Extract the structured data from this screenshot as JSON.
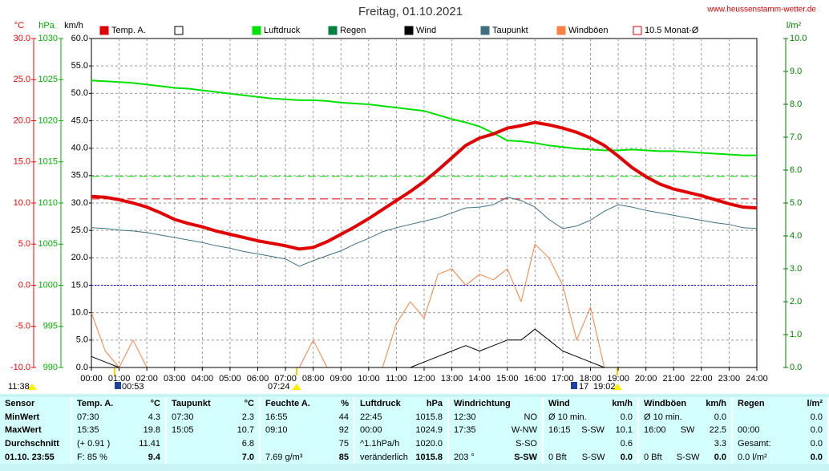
{
  "chart_data": {
    "type": "line",
    "title": "Freitag, 01.10.2021",
    "source": "www.heussenstamm-wetter.de",
    "xlim": [
      0,
      24
    ],
    "xticks": [
      {
        "value": 0,
        "label": "00:00"
      },
      {
        "value": 1,
        "label": "01:00"
      },
      {
        "value": 2,
        "label": "02:00"
      },
      {
        "value": 3,
        "label": "03:00"
      },
      {
        "value": 4,
        "label": "04:00"
      },
      {
        "value": 5,
        "label": "05:00"
      },
      {
        "value": 6,
        "label": "06:00"
      },
      {
        "value": 7,
        "label": "07:00"
      },
      {
        "value": 8,
        "label": "08:00"
      },
      {
        "value": 9,
        "label": "09:00"
      },
      {
        "value": 10,
        "label": "10:00"
      },
      {
        "value": 11,
        "label": "11:00"
      },
      {
        "value": 12,
        "label": "12:00"
      },
      {
        "value": 13,
        "label": "13:00"
      },
      {
        "value": 14,
        "label": "14:00"
      },
      {
        "value": 15,
        "label": "15:00"
      },
      {
        "value": 16,
        "label": "16:00"
      },
      {
        "value": 17,
        "label": "17:00"
      },
      {
        "value": 18,
        "label": "18:00"
      },
      {
        "value": 19,
        "label": "19:00"
      },
      {
        "value": 20,
        "label": "20:00"
      },
      {
        "value": 21,
        "label": "21:00"
      },
      {
        "value": 22,
        "label": "22:00"
      },
      {
        "value": 23,
        "label": "23:00"
      },
      {
        "value": 24,
        "label": "24:00"
      }
    ],
    "grid": true,
    "y_axes": [
      {
        "label": "°C",
        "color": "#ff0000",
        "lim": [
          -10,
          30
        ],
        "ticks": [
          {
            "value": 30,
            "label": "30.0"
          },
          {
            "value": 25,
            "label": "25.0"
          },
          {
            "value": 20,
            "label": "20.0"
          },
          {
            "value": 15,
            "label": "15.0"
          },
          {
            "value": 10,
            "label": "10.0"
          },
          {
            "value": 5,
            "label": "5.0"
          },
          {
            "value": 0,
            "label": "0.0"
          },
          {
            "value": -5,
            "label": "-5.0"
          },
          {
            "value": -10,
            "label": "-10.0"
          }
        ]
      },
      {
        "label": "hPa",
        "color": "#00b000",
        "lim": [
          990,
          1030
        ],
        "ticks": [
          1030,
          1025,
          1020,
          1015,
          1010,
          1005,
          1000,
          995,
          990
        ]
      },
      {
        "label": "km/h",
        "color": "#000000",
        "lim": [
          0,
          60
        ],
        "ticks": [
          {
            "value": 60,
            "label": "60.0"
          },
          {
            "value": 55,
            "label": "55.0"
          },
          {
            "value": 50,
            "label": "50.0"
          },
          {
            "value": 45,
            "label": "45.0"
          },
          {
            "value": 40,
            "label": "40.0"
          },
          {
            "value": 35,
            "label": "35.0"
          },
          {
            "value": 30,
            "label": "30.0"
          },
          {
            "value": 25,
            "label": "25.0"
          },
          {
            "value": 20,
            "label": "20.0"
          },
          {
            "value": 15,
            "label": "15.0"
          },
          {
            "value": 10,
            "label": "10.0"
          },
          {
            "value": 5,
            "label": "5.0"
          },
          {
            "value": 0,
            "label": "0.0"
          }
        ]
      },
      {
        "label": "l/m²",
        "color": "#008000",
        "lim": [
          0,
          10
        ],
        "ticks": [
          {
            "value": 10,
            "label": "10.0"
          },
          {
            "value": 9,
            "label": "9.0"
          },
          {
            "value": 8,
            "label": "8.0"
          },
          {
            "value": 7,
            "label": "7.0"
          },
          {
            "value": 6,
            "label": "6.0"
          },
          {
            "value": 5,
            "label": "5.0"
          },
          {
            "value": 4,
            "label": "4.0"
          },
          {
            "value": 3,
            "label": "3.0"
          },
          {
            "value": 2,
            "label": "2.0"
          },
          {
            "value": 1,
            "label": "1.0"
          },
          {
            "value": 0,
            "label": "0.0"
          }
        ]
      }
    ],
    "x": [
      0,
      0.5,
      1,
      1.5,
      2,
      2.5,
      3,
      3.5,
      4,
      4.5,
      5,
      5.5,
      6,
      6.5,
      7,
      7.5,
      8,
      8.5,
      9,
      9.5,
      10,
      10.5,
      11,
      11.5,
      12,
      12.5,
      13,
      13.5,
      14,
      14.5,
      15,
      15.5,
      16,
      16.5,
      17,
      17.5,
      18,
      18.5,
      19,
      19.5,
      20,
      20.5,
      21,
      21.5,
      22,
      22.5,
      23,
      23.5,
      24
    ],
    "series": [
      {
        "name": "Temp. A.",
        "color": "#e00000",
        "axis": 0,
        "width": 4,
        "values": [
          10.8,
          10.7,
          10.4,
          10.0,
          9.5,
          8.8,
          8.0,
          7.5,
          7.1,
          6.6,
          6.2,
          5.8,
          5.4,
          5.1,
          4.8,
          4.4,
          4.6,
          5.3,
          6.2,
          7.1,
          8.1,
          9.2,
          10.3,
          11.4,
          12.6,
          14.0,
          15.5,
          17.0,
          17.9,
          18.4,
          19.1,
          19.4,
          19.8,
          19.5,
          19.1,
          18.6,
          17.9,
          17.0,
          15.7,
          14.3,
          13.2,
          12.3,
          11.7,
          11.3,
          10.9,
          10.4,
          9.9,
          9.5,
          9.4
        ]
      },
      {
        "name": "Luftdruck",
        "color": "#00e000",
        "axis": 1,
        "width": 2,
        "values": [
          1024.9,
          1024.8,
          1024.7,
          1024.6,
          1024.4,
          1024.2,
          1024.0,
          1023.9,
          1023.7,
          1023.5,
          1023.3,
          1023.1,
          1022.9,
          1022.7,
          1022.6,
          1022.5,
          1022.5,
          1022.4,
          1022.2,
          1022.1,
          1022.0,
          1021.8,
          1021.6,
          1021.4,
          1021.2,
          1020.7,
          1020.2,
          1019.8,
          1019.3,
          1018.5,
          1017.6,
          1017.5,
          1017.3,
          1017.0,
          1016.8,
          1016.6,
          1016.5,
          1016.4,
          1016.4,
          1016.5,
          1016.4,
          1016.3,
          1016.3,
          1016.2,
          1016.1,
          1016.0,
          1015.9,
          1015.8,
          1015.8
        ]
      },
      {
        "name": "Wind",
        "color": "#000000",
        "axis": 2,
        "width": 1,
        "values": [
          2,
          1,
          0,
          0,
          0,
          0,
          0,
          0,
          0,
          0,
          0,
          0,
          0,
          0,
          0,
          0,
          0,
          0,
          0,
          0,
          0,
          0,
          0,
          0,
          1,
          2,
          3,
          4,
          3,
          4,
          5,
          5,
          7,
          5,
          3,
          2,
          1,
          0,
          0,
          0,
          0,
          0,
          0,
          0,
          0,
          0,
          0,
          0,
          0
        ]
      },
      {
        "name": "Taupunkt",
        "color": "#407080",
        "axis": 0,
        "width": 1,
        "values": [
          7.0,
          6.9,
          6.7,
          6.6,
          6.4,
          6.1,
          5.8,
          5.5,
          5.2,
          4.8,
          4.5,
          4.1,
          3.8,
          3.5,
          3.2,
          2.3,
          3.0,
          3.6,
          4.2,
          5.0,
          5.7,
          6.5,
          7.0,
          7.4,
          7.8,
          8.2,
          8.8,
          9.4,
          9.5,
          9.8,
          10.7,
          10.3,
          9.5,
          8.0,
          6.9,
          7.2,
          7.9,
          9.0,
          9.8,
          9.5,
          9.1,
          8.8,
          8.5,
          8.2,
          7.9,
          7.6,
          7.4,
          7.0,
          6.9
        ]
      },
      {
        "name": "Windböen",
        "color": "#ff8040",
        "axis": 2,
        "width": 1,
        "values": [
          10,
          3,
          0,
          5,
          0,
          0,
          0,
          0,
          0,
          0,
          0,
          0,
          0,
          0,
          0,
          0,
          5,
          0,
          0,
          0,
          0,
          0,
          8,
          12,
          9,
          17,
          18,
          15,
          17,
          16,
          18,
          12,
          22.5,
          20,
          15,
          5,
          11,
          0,
          0,
          0,
          0,
          0,
          0,
          0,
          0,
          0,
          0,
          0,
          0
        ]
      }
    ],
    "extra_legend": [
      {
        "name": "Regen",
        "color": "#008040"
      }
    ],
    "reference_lines": [
      {
        "name": "10.5 Monat-Ø",
        "axis": 0,
        "value": 10.5,
        "color": "#e00000",
        "style": "dashed"
      },
      {
        "axis": 1,
        "value": 1013.25,
        "color": "#00e000",
        "style": "dashed"
      },
      {
        "axis": 0,
        "value": 0,
        "color": "#0000e0",
        "style": "dotted"
      }
    ],
    "annotations": [
      "11:38",
      "00:53",
      "07:24",
      "17",
      "19:02"
    ]
  },
  "table": {
    "header": [
      {
        "l": "Sensor"
      },
      {
        "l": "Temp. A.",
        "r": "°C"
      },
      {
        "l": "Taupunkt",
        "r": "°C"
      },
      {
        "l": "Feuchte A.",
        "r": "%"
      },
      {
        "l": "Luftdruck",
        "r": "hPa"
      },
      {
        "l": "Windrichtung"
      },
      {
        "l": "Wind",
        "r": "km/h"
      },
      {
        "l": "Windböen",
        "r": "km/h"
      },
      {
        "l": "Regen",
        "r": "l/m²"
      }
    ],
    "rows": [
      [
        {
          "l": "MinWert"
        },
        {
          "l": "07:30",
          "r": "4.3"
        },
        {
          "l": "07:30",
          "r": "2.3"
        },
        {
          "l": "16:55",
          "r": "44"
        },
        {
          "l": "22:45",
          "r": "1015.8"
        },
        {
          "l": "12:30",
          "r": "NO"
        },
        {
          "l": "Ø 10 min.",
          "r": "0.0"
        },
        {
          "l": "Ø 10 min.",
          "r": "0.0"
        },
        {
          "r": "0.0"
        }
      ],
      [
        {
          "l": "MaxWert"
        },
        {
          "l": "15:35",
          "r": "19.8"
        },
        {
          "l": "15:05",
          "r": "10.7"
        },
        {
          "l": "09:10",
          "r": "92"
        },
        {
          "l": "00:00",
          "r": "1024.9"
        },
        {
          "l": "17:35",
          "r": "W-NW"
        },
        {
          "l": "16:15",
          "m": "S-SW",
          "r": "10.1"
        },
        {
          "l": "16:00",
          "m": "SW",
          "r": "22.5"
        },
        {
          "l": "00:00",
          "r": "0.0"
        }
      ],
      [
        {
          "l": "Durchschnitt"
        },
        {
          "l": "(+ 0.91 )",
          "r": "11.41"
        },
        {
          "r": "6.8"
        },
        {
          "r": "75"
        },
        {
          "l": "^1.1hPa/h",
          "r": "1020.0"
        },
        {
          "r": "S-SO"
        },
        {
          "r": "0.6"
        },
        {
          "r": "3.3"
        },
        {
          "l": "Gesamt:",
          "r": "0.0"
        }
      ],
      [
        {
          "l": "01.10. 23:55"
        },
        {
          "l": "F: 85 %",
          "r": "9.4"
        },
        {
          "r": "7.0"
        },
        {
          "l": "7.69 g/m³",
          "r": "85"
        },
        {
          "l": "veränderlich",
          "r": "1015.8"
        },
        {
          "l": "203 °",
          "r": "S-SW"
        },
        {
          "l": "0 Bft",
          "m": "S-SW",
          "r": "0.0"
        },
        {
          "l": "0 Bft",
          "m": "S-SW",
          "r": "0.0"
        },
        {
          "l": "0.0 l/m²",
          "r": "0.0"
        }
      ]
    ]
  }
}
